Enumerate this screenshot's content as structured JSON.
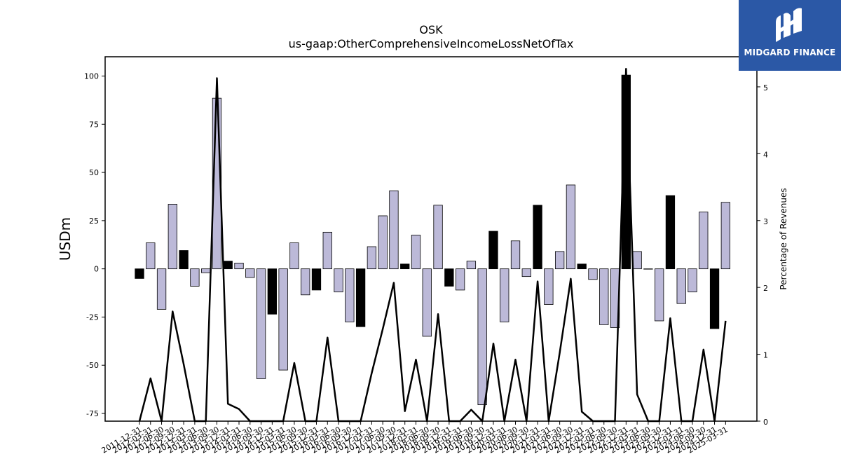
{
  "logo": {
    "text": "MIDGARD FINANCE",
    "icon": "midgard-logo-icon",
    "background": "#2b58a6"
  },
  "chart_data": {
    "type": "bar",
    "title": "OSK",
    "subtitle": "us-gaap:OtherComprehensiveIncomeLossNetOfTax",
    "ylabel": "USDm",
    "ylabel_right": "Percentage of Revenues",
    "ylim": [
      -79,
      110
    ],
    "ylim_right": [
      0,
      5.45
    ],
    "yticks": [
      -75,
      -50,
      -25,
      0,
      25,
      50,
      75,
      100
    ],
    "yticks_right": [
      0,
      1,
      2,
      3,
      4,
      5
    ],
    "colors": {
      "quarterly": "#bcb9d8",
      "annual": "#000000",
      "line": "#000000"
    },
    "categories": [
      "2011-12-31",
      "2012-03-31",
      "2012-06-30",
      "2012-09-30",
      "2012-12-31",
      "2013-03-31",
      "2013-06-30",
      "2013-09-30",
      "2013-12-31",
      "2014-03-31",
      "2014-06-30",
      "2014-09-30",
      "2014-12-31",
      "2015-03-31",
      "2015-06-30",
      "2015-09-30",
      "2015-12-31",
      "2016-03-31",
      "2016-06-30",
      "2016-09-30",
      "2016-12-31",
      "2017-03-31",
      "2017-06-30",
      "2017-09-30",
      "2017-12-31",
      "2018-03-31",
      "2018-06-30",
      "2018-09-30",
      "2018-12-31",
      "2019-03-31",
      "2019-06-30",
      "2019-09-30",
      "2019-12-31",
      "2020-03-31",
      "2020-06-30",
      "2020-09-30",
      "2020-12-31",
      "2021-03-31",
      "2021-06-30",
      "2021-09-30",
      "2021-12-31",
      "2022-03-31",
      "2022-06-30",
      "2022-09-30",
      "2022-12-31",
      "2023-03-31",
      "2023-06-30",
      "2023-09-30",
      "2023-12-31",
      "2024-03-31",
      "2024-06-30",
      "2024-09-30",
      "2024-12-31",
      "2025-03-31"
    ],
    "series": [
      {
        "values": [
          -5,
          13.5,
          -21,
          33.5,
          9.5,
          -9,
          -2,
          88.5,
          4,
          3,
          -4.5,
          -57,
          -23.5,
          -52.5,
          13.5,
          -13.5,
          -11,
          19,
          -12,
          -27.5,
          -30,
          11.5,
          27.5,
          40.5,
          2.5,
          17.5,
          -35,
          33,
          -9,
          -11,
          4,
          -70.5,
          19.5,
          -27.5,
          14.5,
          -4,
          33,
          -18.5,
          9,
          43.5,
          2.5,
          -5.5,
          -29,
          -30.5,
          100.5,
          9,
          0,
          -27,
          38,
          -18,
          -12,
          29.5,
          -31,
          34.5
        ],
        "annual": [
          true,
          false,
          false,
          false,
          true,
          false,
          false,
          false,
          true,
          false,
          false,
          false,
          true,
          false,
          false,
          false,
          true,
          false,
          false,
          false,
          true,
          false,
          false,
          false,
          true,
          false,
          false,
          false,
          true,
          false,
          false,
          false,
          true,
          false,
          false,
          false,
          true,
          false,
          false,
          false,
          true,
          false,
          false,
          false,
          true,
          false,
          false,
          false,
          true,
          false,
          false,
          false,
          true,
          false
        ]
      },
      {
        "axis": "right",
        "values": [
          0,
          0.64,
          0,
          1.64,
          0.85,
          0,
          0,
          5.13,
          0.26,
          0.18,
          0,
          0,
          0,
          0,
          0.87,
          0,
          0,
          1.25,
          0,
          0,
          0,
          0.72,
          1.38,
          2.07,
          0.15,
          0.92,
          0,
          1.6,
          0,
          0,
          0.17,
          0,
          1.16,
          0,
          0.92,
          0,
          2.09,
          0,
          1.02,
          2.13,
          0.14,
          0,
          0,
          0,
          5.27,
          0.4,
          0,
          0,
          1.54,
          0,
          0,
          1.07,
          0,
          1.5
        ]
      }
    ]
  }
}
